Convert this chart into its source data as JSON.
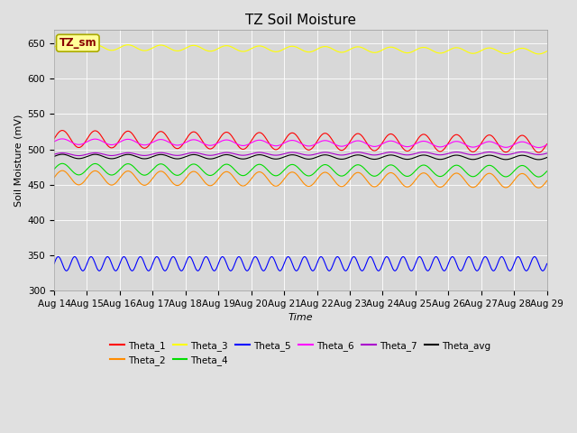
{
  "title": "TZ Soil Moisture",
  "xlabel": "Time",
  "ylabel": "Soil Moisture (mV)",
  "ylim": [
    300,
    670
  ],
  "yticks": [
    300,
    350,
    400,
    450,
    500,
    550,
    600,
    650
  ],
  "date_end": 15,
  "num_points": 1500,
  "series": {
    "Theta_1": {
      "color": "#ff0000",
      "base": 515,
      "amplitude": 12,
      "freq": 15.0,
      "trend": -0.5
    },
    "Theta_2": {
      "color": "#ff8c00",
      "base": 460,
      "amplitude": 10,
      "freq": 15.0,
      "trend": -0.3
    },
    "Theta_3": {
      "color": "#ffff00",
      "base": 645,
      "amplitude": 4,
      "freq": 15.0,
      "trend": -0.4
    },
    "Theta_4": {
      "color": "#00dd00",
      "base": 472,
      "amplitude": 8,
      "freq": 15.0,
      "trend": -0.2
    },
    "Theta_5": {
      "color": "#0000ff",
      "base": 338,
      "amplitude": 10,
      "freq": 30.0,
      "trend": 0.0
    },
    "Theta_6": {
      "color": "#ff00ff",
      "base": 511,
      "amplitude": 4,
      "freq": 15.0,
      "trend": -0.3
    },
    "Theta_7": {
      "color": "#aa00cc",
      "base": 493,
      "amplitude": 2,
      "freq": 15.0,
      "trend": 0.1
    },
    "Theta_avg": {
      "color": "#000000",
      "base": 490,
      "amplitude": 3,
      "freq": 15.0,
      "trend": -0.1
    }
  },
  "legend_order": [
    "Theta_1",
    "Theta_2",
    "Theta_3",
    "Theta_4",
    "Theta_5",
    "Theta_6",
    "Theta_7",
    "Theta_avg"
  ],
  "bg_color": "#e0e0e0",
  "plot_bg_color": "#d8d8d8",
  "label_box_text": "TZ_sm",
  "label_box_fg": "#880000",
  "label_box_bg": "#ffff99",
  "label_box_edge": "#aaaa00",
  "xtick_labels": [
    "Aug 14",
    "Aug 15",
    "Aug 16",
    "Aug 17",
    "Aug 18",
    "Aug 19",
    "Aug 20",
    "Aug 21",
    "Aug 22",
    "Aug 23",
    "Aug 24",
    "Aug 25",
    "Aug 26",
    "Aug 27",
    "Aug 28",
    "Aug 29"
  ],
  "title_fontsize": 11,
  "axis_fontsize": 8,
  "tick_fontsize": 7.5
}
